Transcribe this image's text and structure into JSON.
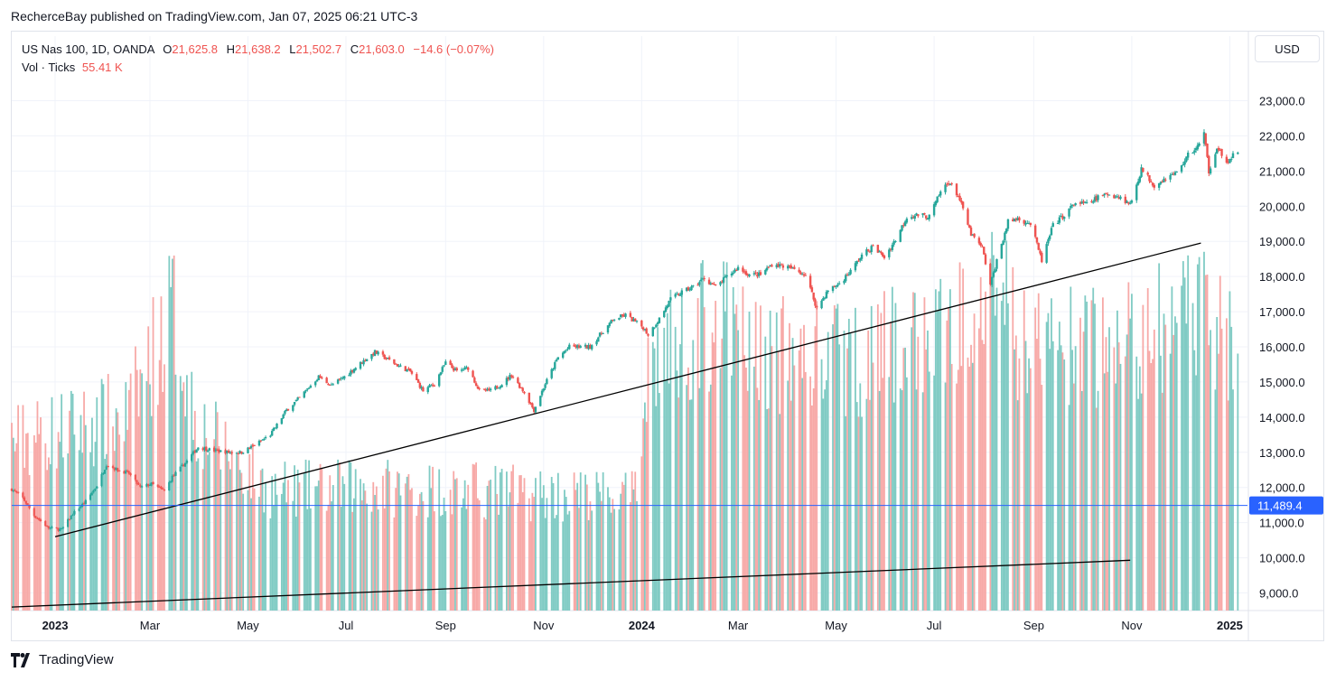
{
  "header": {
    "text": "RecherceBay published on TradingView.com, Jan 07, 2025 06:21 UTC-3"
  },
  "legend": {
    "symbol": "US Nas 100, 1D, OANDA",
    "o_label": "O",
    "o_value": "21,625.8",
    "h_label": "H",
    "h_value": "21,638.2",
    "l_label": "L",
    "l_value": "21,502.7",
    "c_label": "C",
    "c_value": "21,603.0",
    "change": "−14.6 (−0.07%)",
    "vol_label": "Vol · Ticks",
    "vol_value": "55.41 K"
  },
  "currency_button": "USD",
  "footer": {
    "brand": "TradingView"
  },
  "colors": {
    "up": "#26a69a",
    "down": "#ef5350",
    "vol_up": "#80cbc4",
    "vol_down": "#f7a9a7",
    "price_line": "#2962ff",
    "trend": "#000000",
    "grid": "#f0f3fa"
  },
  "chart_data": {
    "type": "candlestick",
    "y_axis": {
      "min": 8500,
      "max": 23500,
      "ticks": [
        "9,000.0",
        "10,000.0",
        "11,000.0",
        "12,000.0",
        "13,000.0",
        "14,000.0",
        "15,000.0",
        "16,000.0",
        "17,000.0",
        "18,000.0",
        "19,000.0",
        "20,000.0",
        "21,000.0",
        "22,000.0",
        "23,000.0"
      ],
      "tick_values": [
        9000,
        10000,
        11000,
        12000,
        13000,
        14000,
        15000,
        16000,
        17000,
        18000,
        19000,
        20000,
        21000,
        22000,
        23000
      ]
    },
    "x_axis": {
      "start": "2022-12-05",
      "end": "2025-01-12",
      "ticks": [
        {
          "date": "2023-01-01",
          "label": "2023",
          "bold": true
        },
        {
          "date": "2023-03-01",
          "label": "Mar",
          "bold": false
        },
        {
          "date": "2023-05-01",
          "label": "May",
          "bold": false
        },
        {
          "date": "2023-07-01",
          "label": "Jul",
          "bold": false
        },
        {
          "date": "2023-09-01",
          "label": "Sep",
          "bold": false
        },
        {
          "date": "2023-11-01",
          "label": "Nov",
          "bold": false
        },
        {
          "date": "2024-01-01",
          "label": "2024",
          "bold": true
        },
        {
          "date": "2024-03-01",
          "label": "Mar",
          "bold": false
        },
        {
          "date": "2024-05-01",
          "label": "May",
          "bold": false
        },
        {
          "date": "2024-07-01",
          "label": "Jul",
          "bold": false
        },
        {
          "date": "2024-09-01",
          "label": "Sep",
          "bold": false
        },
        {
          "date": "2024-11-01",
          "label": "Nov",
          "bold": false
        },
        {
          "date": "2025-01-01",
          "label": "2025",
          "bold": true
        }
      ]
    },
    "close_path": [
      [
        "2022-12-05",
        11950
      ],
      [
        "2022-12-12",
        11700
      ],
      [
        "2022-12-19",
        11200
      ],
      [
        "2022-12-28",
        10850
      ],
      [
        "2023-01-05",
        10800
      ],
      [
        "2023-01-12",
        11250
      ],
      [
        "2023-01-20",
        11600
      ],
      [
        "2023-01-27",
        12050
      ],
      [
        "2023-02-02",
        12650
      ],
      [
        "2023-02-09",
        12500
      ],
      [
        "2023-02-16",
        12400
      ],
      [
        "2023-02-23",
        12000
      ],
      [
        "2023-03-02",
        12100
      ],
      [
        "2023-03-10",
        11900
      ],
      [
        "2023-03-15",
        12300
      ],
      [
        "2023-03-24",
        12750
      ],
      [
        "2023-03-31",
        13150
      ],
      [
        "2023-04-10",
        13050
      ],
      [
        "2023-04-20",
        13000
      ],
      [
        "2023-04-27",
        13000
      ],
      [
        "2023-05-05",
        13200
      ],
      [
        "2023-05-15",
        13500
      ],
      [
        "2023-05-25",
        14200
      ],
      [
        "2023-06-02",
        14550
      ],
      [
        "2023-06-14",
        15150
      ],
      [
        "2023-06-22",
        14900
      ],
      [
        "2023-06-30",
        15150
      ],
      [
        "2023-07-12",
        15600
      ],
      [
        "2023-07-19",
        15850
      ],
      [
        "2023-07-27",
        15650
      ],
      [
        "2023-08-03",
        15450
      ],
      [
        "2023-08-10",
        15300
      ],
      [
        "2023-08-18",
        14750
      ],
      [
        "2023-08-25",
        14950
      ],
      [
        "2023-09-01",
        15550
      ],
      [
        "2023-09-08",
        15300
      ],
      [
        "2023-09-15",
        15400
      ],
      [
        "2023-09-22",
        14750
      ],
      [
        "2023-09-29",
        14750
      ],
      [
        "2023-10-06",
        14950
      ],
      [
        "2023-10-12",
        15200
      ],
      [
        "2023-10-20",
        14700
      ],
      [
        "2023-10-26",
        14200
      ],
      [
        "2023-11-02",
        14950
      ],
      [
        "2023-11-10",
        15700
      ],
      [
        "2023-11-17",
        16000
      ],
      [
        "2023-11-30",
        16000
      ],
      [
        "2023-12-08",
        16450
      ],
      [
        "2023-12-15",
        16800
      ],
      [
        "2023-12-22",
        16900
      ],
      [
        "2024-01-02",
        16550
      ],
      [
        "2024-01-05",
        16350
      ],
      [
        "2024-01-12",
        16800
      ],
      [
        "2024-01-19",
        17350
      ],
      [
        "2024-01-26",
        17550
      ],
      [
        "2024-02-02",
        17700
      ],
      [
        "2024-02-09",
        17950
      ],
      [
        "2024-02-16",
        17700
      ],
      [
        "2024-02-22",
        17950
      ],
      [
        "2024-03-01",
        18250
      ],
      [
        "2024-03-08",
        18050
      ],
      [
        "2024-03-15",
        18050
      ],
      [
        "2024-03-22",
        18350
      ],
      [
        "2024-03-29",
        18300
      ],
      [
        "2024-04-05",
        18200
      ],
      [
        "2024-04-12",
        18050
      ],
      [
        "2024-04-19",
        17100
      ],
      [
        "2024-04-26",
        17600
      ],
      [
        "2024-05-03",
        17800
      ],
      [
        "2024-05-10",
        18150
      ],
      [
        "2024-05-17",
        18600
      ],
      [
        "2024-05-24",
        18850
      ],
      [
        "2024-05-31",
        18550
      ],
      [
        "2024-06-07",
        19050
      ],
      [
        "2024-06-14",
        19700
      ],
      [
        "2024-06-21",
        19750
      ],
      [
        "2024-06-28",
        19700
      ],
      [
        "2024-07-05",
        20400
      ],
      [
        "2024-07-10",
        20700
      ],
      [
        "2024-07-16",
        20300
      ],
      [
        "2024-07-24",
        19200
      ],
      [
        "2024-07-31",
        18800
      ],
      [
        "2024-08-05",
        17750
      ],
      [
        "2024-08-09",
        18450
      ],
      [
        "2024-08-16",
        19550
      ],
      [
        "2024-08-22",
        19650
      ],
      [
        "2024-08-30",
        19500
      ],
      [
        "2024-09-06",
        18450
      ],
      [
        "2024-09-13",
        19450
      ],
      [
        "2024-09-20",
        19750
      ],
      [
        "2024-09-27",
        20100
      ],
      [
        "2024-10-04",
        20050
      ],
      [
        "2024-10-11",
        20250
      ],
      [
        "2024-10-18",
        20350
      ],
      [
        "2024-10-25",
        20250
      ],
      [
        "2024-10-31",
        20050
      ],
      [
        "2024-11-07",
        21050
      ],
      [
        "2024-11-15",
        20600
      ],
      [
        "2024-11-22",
        20800
      ],
      [
        "2024-11-29",
        20950
      ],
      [
        "2024-12-06",
        21450
      ],
      [
        "2024-12-13",
        21750
      ],
      [
        "2024-12-16",
        22050
      ],
      [
        "2024-12-19",
        21000
      ],
      [
        "2024-12-24",
        21700
      ],
      [
        "2024-12-31",
        21150
      ],
      [
        "2025-01-03",
        21500
      ],
      [
        "2025-01-06",
        21603
      ]
    ],
    "volume_scale_max": 13000,
    "volume_levels": [
      [
        "2022-12-05",
        4500
      ],
      [
        "2023-02-15",
        5200
      ],
      [
        "2023-03-15",
        8100
      ],
      [
        "2023-03-30",
        5000
      ],
      [
        "2023-05-15",
        3200
      ],
      [
        "2023-07-15",
        3300
      ],
      [
        "2023-09-15",
        3200
      ],
      [
        "2023-11-15",
        3100
      ],
      [
        "2023-12-30",
        3000
      ],
      [
        "2024-01-03",
        6500
      ],
      [
        "2024-02-15",
        7800
      ],
      [
        "2024-03-15",
        6800
      ],
      [
        "2024-05-15",
        6700
      ],
      [
        "2024-07-15",
        7500
      ],
      [
        "2024-08-05",
        9800
      ],
      [
        "2024-08-20",
        7200
      ],
      [
        "2024-10-15",
        7000
      ],
      [
        "2024-12-15",
        7800
      ],
      [
        "2025-01-06",
        7200
      ]
    ],
    "last_price_line": {
      "value": 11489.4,
      "label": "11,489.4"
    },
    "trendlines": [
      {
        "from": [
          "2023-01-01",
          10600
        ],
        "to": [
          "2024-12-14",
          18950
        ]
      },
      {
        "from": [
          "2022-12-05",
          8600
        ],
        "to": [
          "2024-10-31",
          9930
        ]
      }
    ]
  }
}
